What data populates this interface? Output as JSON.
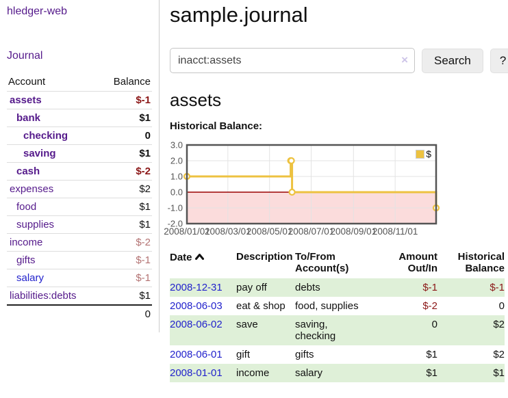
{
  "theme": {
    "link_purple": "#551a8b",
    "link_blue": "#2222cc",
    "negative_strong": "#8b1717",
    "negative_soft": "#b37272",
    "stripe_green": "#dff0d8"
  },
  "sidebar": {
    "app_title": "hledger-web",
    "journal_link": "Journal",
    "accounts_table": {
      "headers": {
        "account": "Account",
        "balance": "Balance"
      },
      "rows": [
        {
          "account": "assets",
          "indent": 1,
          "bold": true,
          "link": "purple",
          "balance": "$-1",
          "balance_style": "neg-strong"
        },
        {
          "account": "bank",
          "indent": 2,
          "bold": true,
          "link": "purple",
          "balance": "$1",
          "balance_style": "pos"
        },
        {
          "account": "checking",
          "indent": 3,
          "bold": true,
          "link": "purple",
          "balance": "0",
          "balance_style": "pos"
        },
        {
          "account": "saving",
          "indent": 3,
          "bold": true,
          "link": "purple",
          "balance": "$1",
          "balance_style": "pos"
        },
        {
          "account": "cash",
          "indent": 2,
          "bold": true,
          "link": "purple",
          "balance": "$-2",
          "balance_style": "neg-strong"
        },
        {
          "account": "expenses",
          "indent": 1,
          "bold": false,
          "link": "purple",
          "balance": "$2",
          "balance_style": "pos"
        },
        {
          "account": "food",
          "indent": 2,
          "bold": false,
          "link": "purple",
          "balance": "$1",
          "balance_style": "pos"
        },
        {
          "account": "supplies",
          "indent": 2,
          "bold": false,
          "link": "purple",
          "balance": "$1",
          "balance_style": "pos"
        },
        {
          "account": "income",
          "indent": 1,
          "bold": false,
          "link": "purple",
          "balance": "$-2",
          "balance_style": "neg-soft"
        },
        {
          "account": "gifts",
          "indent": 2,
          "bold": false,
          "link": "purple",
          "balance": "$-1",
          "balance_style": "neg-soft"
        },
        {
          "account": "salary",
          "indent": 2,
          "bold": false,
          "link": "blue",
          "balance": "$-1",
          "balance_style": "neg-soft"
        },
        {
          "account": "liabilities:debts",
          "indent": 1,
          "bold": false,
          "link": "purple",
          "balance": "$1",
          "balance_style": "pos"
        }
      ],
      "total": "0"
    }
  },
  "header": {
    "title": "sample.journal"
  },
  "search": {
    "value": "inacct:assets",
    "clear_icon": "×",
    "search_button": "Search",
    "help_button": "?"
  },
  "account_page": {
    "heading": "assets",
    "chart_title": "Historical Balance:"
  },
  "chart_data": {
    "type": "line",
    "step": true,
    "title": "Historical Balance",
    "xlim": [
      "2008/01/01",
      "2008/12/31"
    ],
    "ylim": [
      -2,
      3
    ],
    "x_ticks": [
      "2008/01/01",
      "2008/03/01",
      "2008/05/01",
      "2008/07/01",
      "2008/09/01",
      "2008/11/01"
    ],
    "y_ticks": [
      "3.0",
      "2.0",
      "1.0",
      "0.0",
      "-1.0",
      "-2.0"
    ],
    "series": [
      {
        "name": "$",
        "color": "#edc240",
        "points": [
          [
            "2008/01/01",
            1
          ],
          [
            "2008/06/01",
            2
          ],
          [
            "2008/06/02",
            2
          ],
          [
            "2008/06/03",
            0
          ],
          [
            "2008/12/31",
            -1
          ]
        ]
      }
    ],
    "colors": {
      "negative_region": "#fbdcdc",
      "zero_line": "#990000",
      "grid": "#e3e3e3",
      "border": "#545454",
      "axis_text": "#545454"
    },
    "legend_position": "top-right",
    "grid": true
  },
  "register": {
    "headers": [
      {
        "l1": "Date",
        "l2": "",
        "sorted": true,
        "align": "left"
      },
      {
        "l1": "Description",
        "l2": "",
        "sorted": false,
        "align": "left"
      },
      {
        "l1": "To/From",
        "l2": "Account(s)",
        "sorted": false,
        "align": "left"
      },
      {
        "l1": "Amount",
        "l2": "Out/In",
        "sorted": false,
        "align": "right"
      },
      {
        "l1": "Historical",
        "l2": "Balance",
        "sorted": false,
        "align": "right"
      }
    ],
    "rows": [
      {
        "date": "2008-12-31",
        "description": "pay off",
        "accounts": "debts",
        "amount": "$-1",
        "balance": "$-1"
      },
      {
        "date": "2008-06-03",
        "description": "eat & shop",
        "accounts": "food, supplies",
        "amount": "$-2",
        "balance": "0"
      },
      {
        "date": "2008-06-02",
        "description": "save",
        "accounts": "saving, checking",
        "amount": "0",
        "balance": "$2"
      },
      {
        "date": "2008-06-01",
        "description": "gift",
        "accounts": "gifts",
        "amount": "$1",
        "balance": "$2"
      },
      {
        "date": "2008-01-01",
        "description": "income",
        "accounts": "salary",
        "amount": "$1",
        "balance": "$1"
      }
    ]
  }
}
